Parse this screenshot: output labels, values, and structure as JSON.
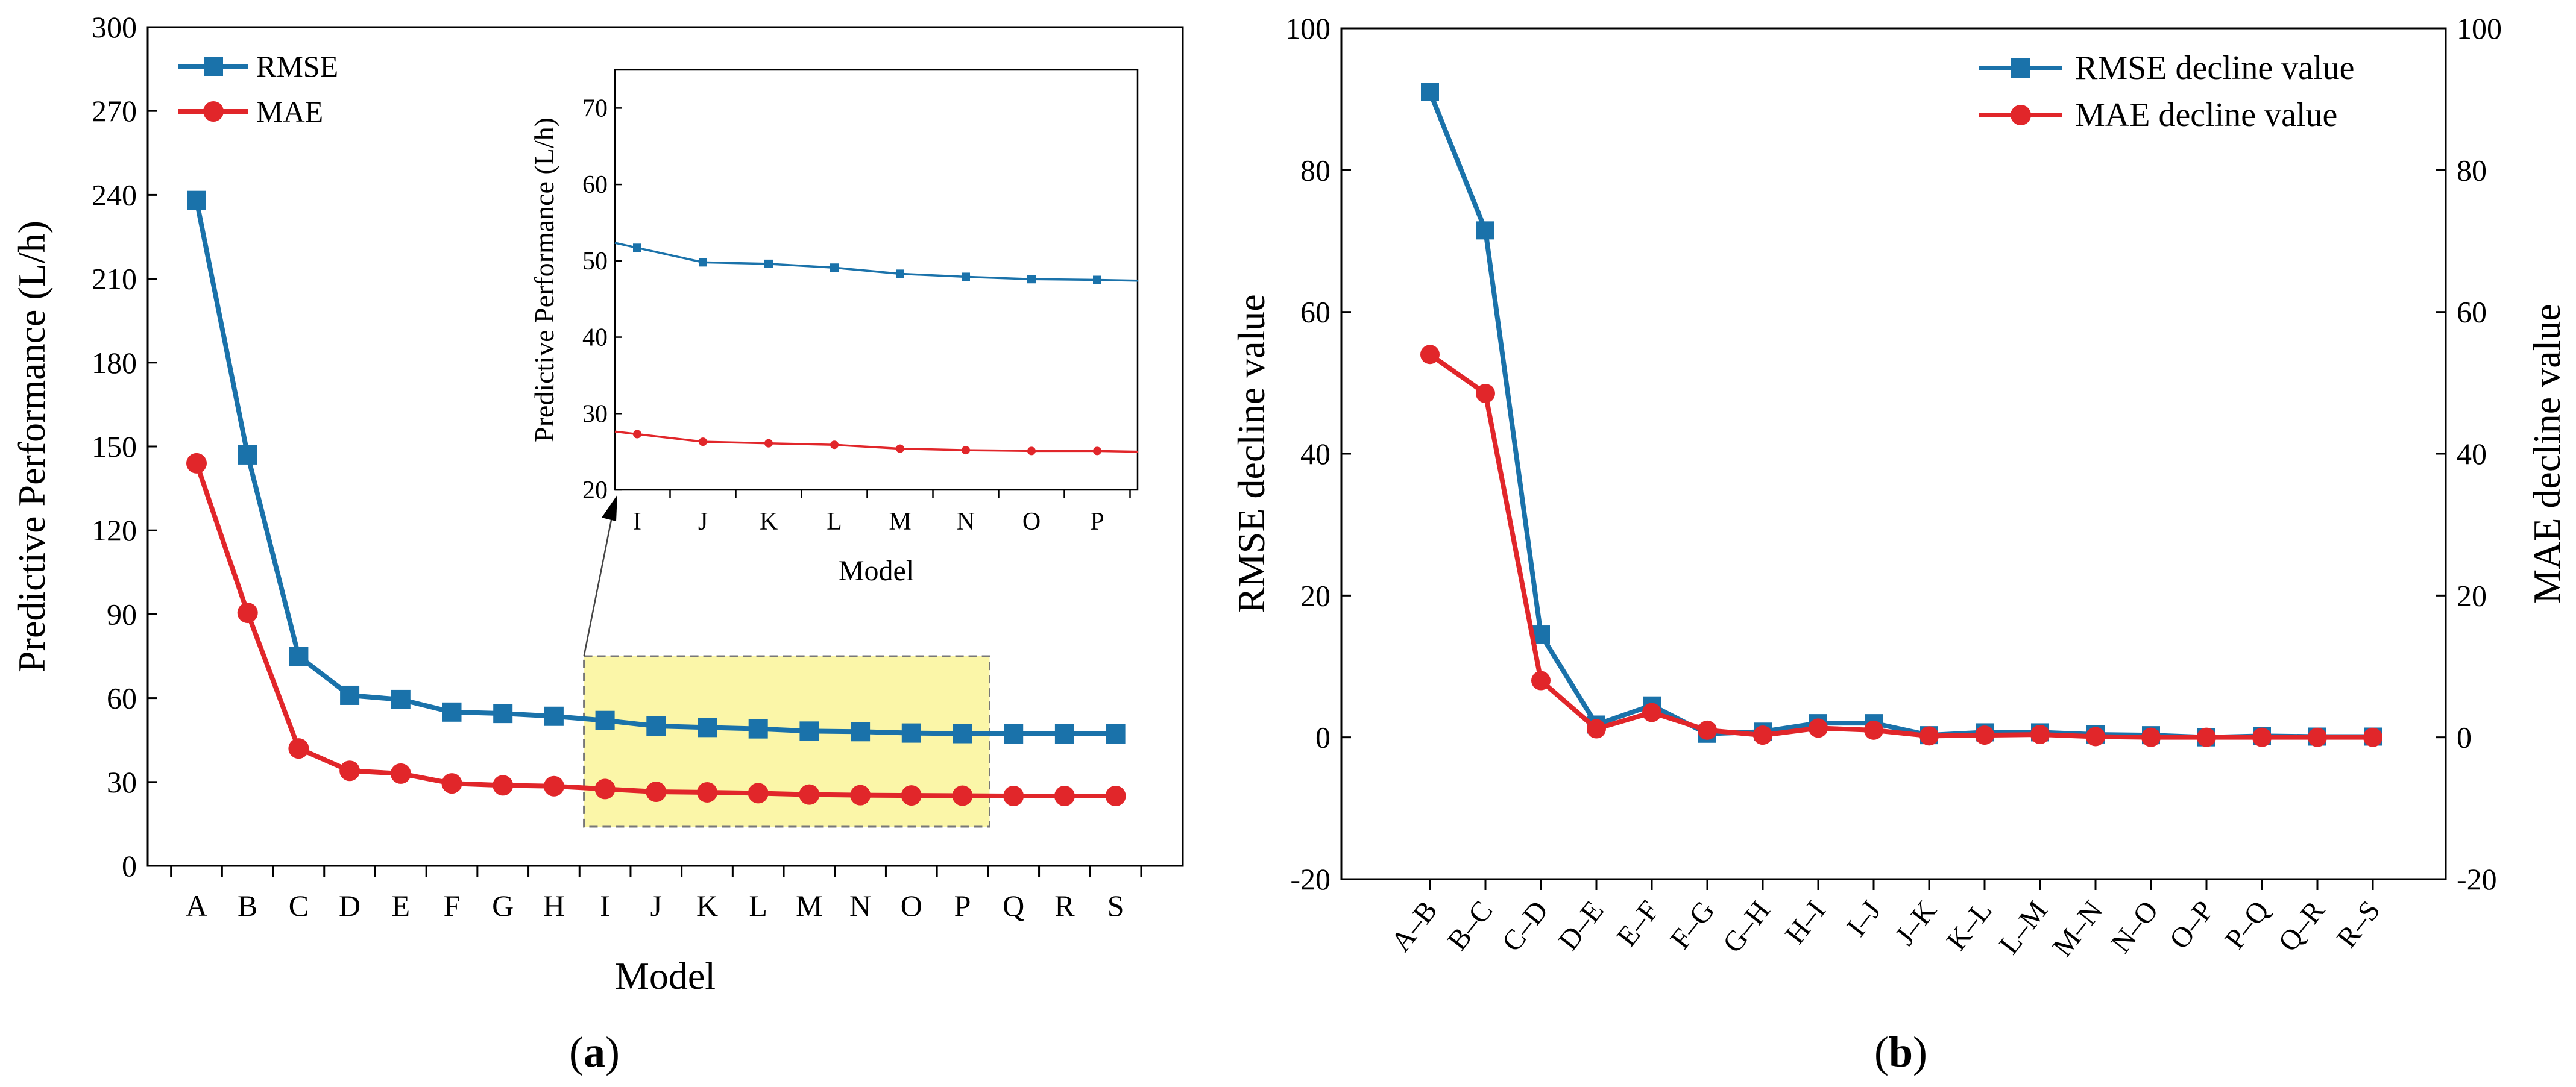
{
  "colors": {
    "rmse": "#1a72aa",
    "mae": "#e1262a",
    "highlight_fill": "#fbf6a8",
    "highlight_stroke": "#777777",
    "axis": "#000000"
  },
  "chart_data": [
    {
      "id": "a",
      "type": "line",
      "panel_label": "a",
      "xlabel": "Model",
      "ylabel": "Predictive Performance (L/h)",
      "categories": [
        "A",
        "B",
        "C",
        "D",
        "E",
        "F",
        "G",
        "H",
        "I",
        "J",
        "K",
        "L",
        "M",
        "N",
        "O",
        "P",
        "Q",
        "R",
        "S"
      ],
      "ylim": [
        0,
        300
      ],
      "yticks": [
        0,
        30,
        60,
        90,
        120,
        150,
        180,
        210,
        240,
        270,
        300
      ],
      "legend_position": "top-left",
      "series": [
        {
          "name": "RMSE",
          "marker": "square",
          "values": [
            238,
            147,
            75,
            61,
            59.5,
            55,
            54.5,
            53.5,
            52,
            50,
            49.5,
            49,
            48.2,
            48,
            47.5,
            47.3,
            47.2,
            47.2,
            47.2
          ]
        },
        {
          "name": "MAE",
          "marker": "circle",
          "values": [
            144,
            90.5,
            42,
            34,
            33,
            29.5,
            28.8,
            28.5,
            27.5,
            26.5,
            26.3,
            26,
            25.5,
            25.3,
            25.2,
            25.1,
            25,
            25,
            25
          ]
        }
      ],
      "highlight_range": {
        "x_from": "I",
        "x_to": "P",
        "y_from": 14,
        "y_to": 75
      },
      "inset": {
        "xlabel": "Model",
        "ylabel": "Predictive Performance (L/h)",
        "categories": [
          "I",
          "J",
          "K",
          "L",
          "M",
          "N",
          "O",
          "P"
        ],
        "ylim": [
          20,
          75
        ],
        "yticks": [
          20,
          30,
          40,
          50,
          60,
          70
        ],
        "series": [
          {
            "name": "RMSE",
            "values": [
              51.7,
              49.8,
              49.6,
              49.1,
              48.3,
              47.9,
              47.6,
              47.5
            ]
          },
          {
            "name": "MAE",
            "values": [
              27.3,
              26.3,
              26.1,
              25.9,
              25.4,
              25.2,
              25.1,
              25.1
            ]
          }
        ]
      }
    },
    {
      "id": "b",
      "type": "line",
      "panel_label": "b",
      "ylabel_left": "RMSE decline value",
      "ylabel_right": "MAE decline value",
      "categories": [
        "A–B",
        "B–C",
        "C–D",
        "D–E",
        "E–F",
        "F–G",
        "G–H",
        "H–I",
        "I–J",
        "J–K",
        "K–L",
        "L–M",
        "M–N",
        "N–O",
        "O–P",
        "P–Q",
        "Q–R",
        "R–S"
      ],
      "ylim": [
        -20,
        100
      ],
      "yticks": [
        -20,
        0,
        20,
        40,
        60,
        80,
        100
      ],
      "legend_position": "top-right",
      "series": [
        {
          "name": "RMSE decline value",
          "marker": "square",
          "values": [
            91,
            71.5,
            14.5,
            1.8,
            4.5,
            0.5,
            0.8,
            2,
            2,
            0.3,
            0.7,
            0.7,
            0.4,
            0.3,
            0,
            0.2,
            0.1,
            0.1
          ]
        },
        {
          "name": "MAE decline value",
          "marker": "circle",
          "values": [
            54,
            48.5,
            8,
            1.2,
            3.5,
            1,
            0.3,
            1.3,
            1,
            0.2,
            0.3,
            0.4,
            0.1,
            0,
            0,
            0,
            0,
            0
          ]
        }
      ]
    }
  ]
}
